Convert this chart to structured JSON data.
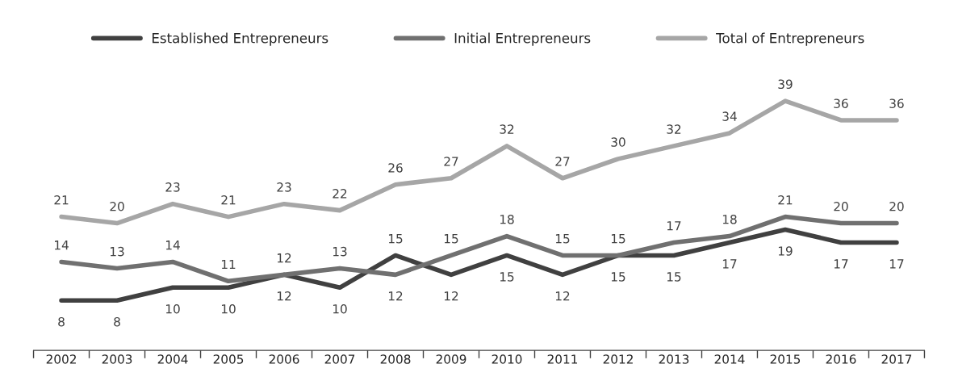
{
  "chart_data": {
    "type": "line",
    "categories": [
      "2002",
      "2003",
      "2004",
      "2005",
      "2006",
      "2007",
      "2008",
      "2009",
      "2010",
      "2011",
      "2012",
      "2013",
      "2014",
      "2015",
      "2016",
      "2017"
    ],
    "series": [
      {
        "name": "Established Entrepreneurs",
        "color": "#404040",
        "values": [
          8,
          8,
          10,
          10,
          12,
          10,
          15,
          12,
          15,
          12,
          15,
          15,
          17,
          19,
          17,
          17
        ]
      },
      {
        "name": "Initial Entrepreneurs",
        "color": "#707070",
        "values": [
          14,
          13,
          14,
          11,
          12,
          13,
          12,
          15,
          18,
          15,
          15,
          17,
          18,
          21,
          20,
          20
        ]
      },
      {
        "name": "Total of Entrepreneurs",
        "color": "#a6a6a6",
        "values": [
          21,
          20,
          23,
          21,
          23,
          22,
          26,
          27,
          32,
          27,
          30,
          32,
          34,
          39,
          36,
          36
        ]
      }
    ],
    "data_labels": true,
    "legend": "top",
    "grid": false,
    "marker": "none",
    "line_style": "solid"
  }
}
